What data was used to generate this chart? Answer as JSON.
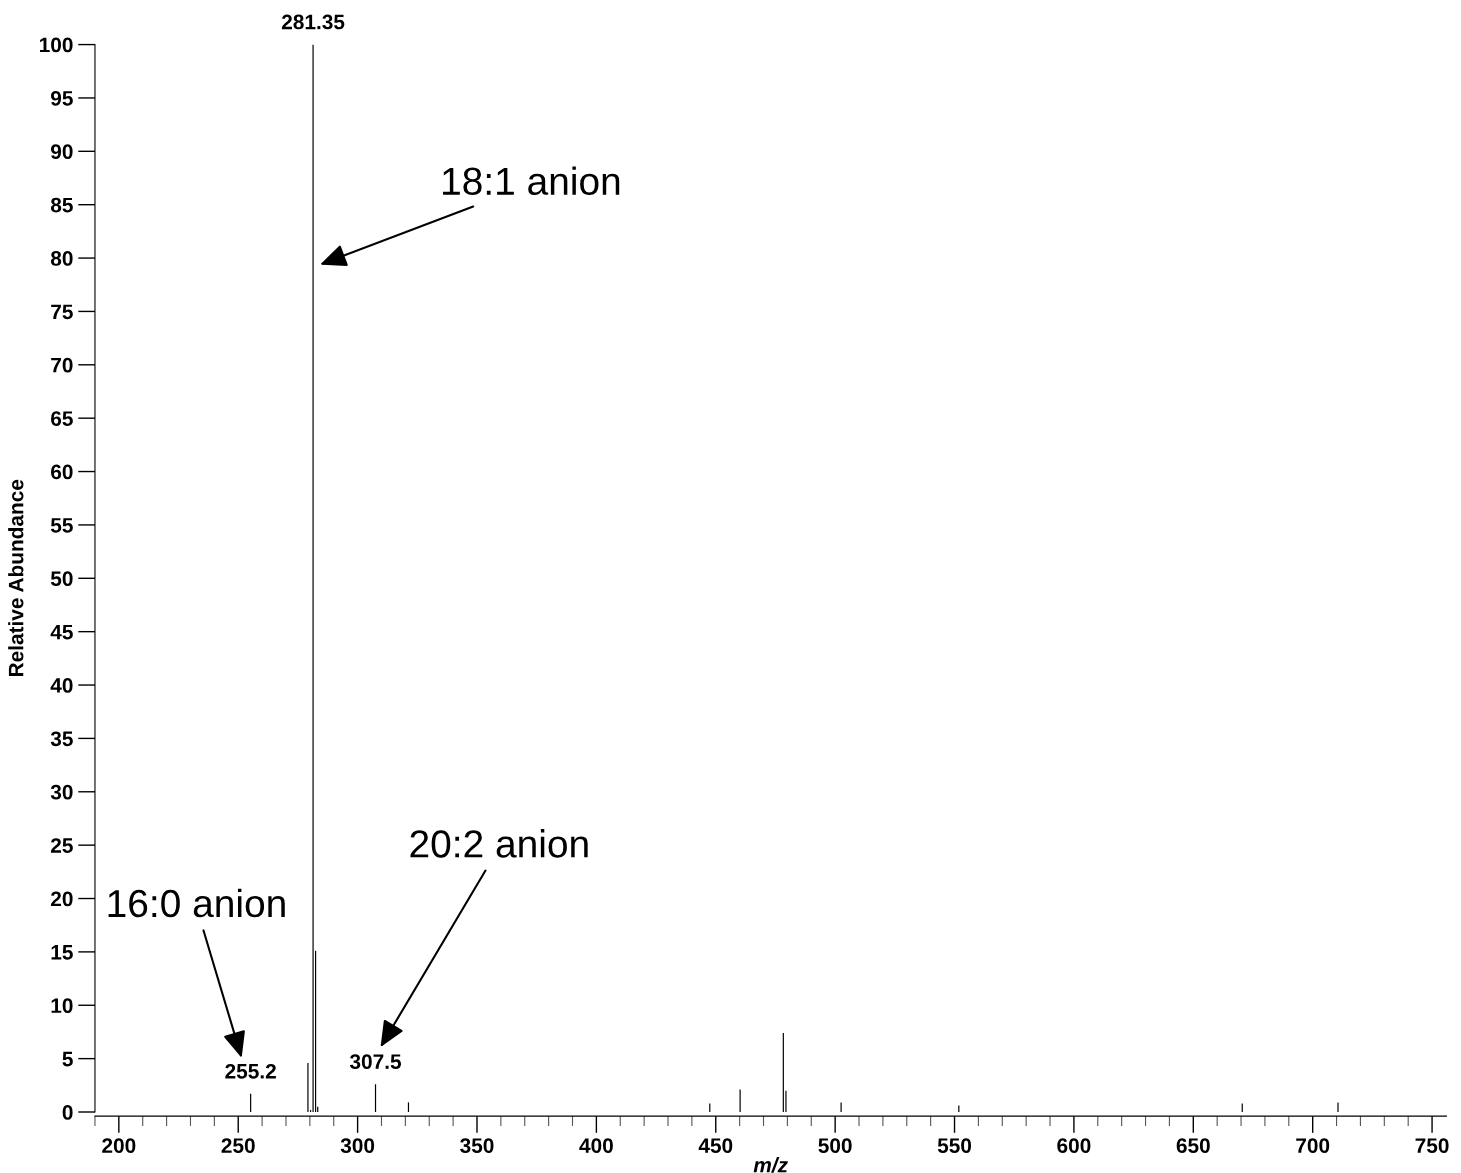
{
  "chart_data": {
    "type": "bar",
    "xlabel": "m/z",
    "ylabel": "Relative Abundance",
    "x": [
      255.2,
      279.2,
      280.3,
      281.35,
      282.4,
      283.3,
      307.5,
      321.3,
      447.5,
      460.2,
      478.3,
      479.4,
      502.5,
      551.8,
      670.5,
      710.6
    ],
    "series": [
      {
        "color": "#000000",
        "values": [
          1.7,
          4.6,
          0.2,
          100,
          15.1,
          0.5,
          2.6,
          0.9,
          0.8,
          2.1,
          7.4,
          2.0,
          0.9,
          0.6,
          0.8,
          0.9
        ]
      }
    ],
    "xlim": [
      190,
      756
    ],
    "xticks": [
      200,
      250,
      300,
      350,
      400,
      450,
      500,
      550,
      600,
      650,
      700,
      750
    ],
    "ylim": [
      0,
      100
    ],
    "yticks": [
      0,
      5,
      10,
      15,
      20,
      25,
      30,
      35,
      40,
      45,
      50,
      55,
      60,
      65,
      70,
      75,
      80,
      85,
      90,
      95,
      100
    ],
    "grid": false,
    "annotations": [
      {
        "text": "281.35",
        "x": 281.35,
        "y": 100
      },
      {
        "text": "255.2",
        "x": 255.2,
        "y": 1.7
      },
      {
        "text": "307.5",
        "x": 307.5,
        "y": 2.6
      },
      "18:1 anion",
      "16:0 anion",
      "20:2 anion"
    ]
  }
}
